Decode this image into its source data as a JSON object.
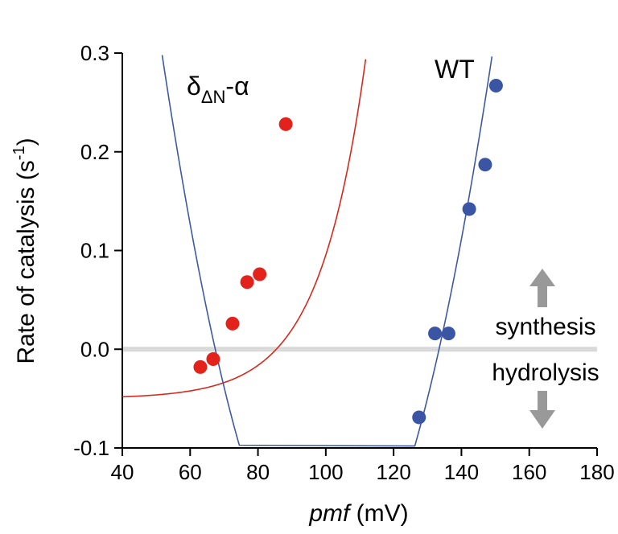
{
  "chart_data": {
    "type": "scatter",
    "xlabel": {
      "italic": "pmf",
      "rest": " (mV)"
    },
    "ylabel": {
      "main": "Rate of catalysis (s",
      "sup": "-1",
      "close": ")"
    },
    "xlim": [
      40,
      180
    ],
    "ylim": [
      -0.1,
      0.3
    ],
    "xticks": [
      "40",
      "60",
      "80",
      "100",
      "120",
      "140",
      "160",
      "180"
    ],
    "yticks": [
      "-0.1",
      "0.0",
      "0.1",
      "0.2",
      "0.3"
    ],
    "zero_line": 0.0,
    "series": [
      {
        "label_main": "δ",
        "label_sub": "ΔN",
        "label_suffix": "-α",
        "color": "#e3231b",
        "curve_color": "#d42a1e",
        "points": [
          [
            63,
            -0.018
          ],
          [
            66.8,
            -0.01
          ],
          [
            72.5,
            0.026
          ],
          [
            76.8,
            0.068
          ],
          [
            80.5,
            0.076
          ],
          [
            88.2,
            0.228
          ]
        ],
        "fit": {
          "kind": "exponential",
          "y_offset": -0.05,
          "a": 0.0018,
          "b": 0.0732
        }
      },
      {
        "label_main": "WT",
        "color": "#3a55a4",
        "curve_color": "#3e5a9e",
        "points": [
          [
            127.5,
            -0.069
          ],
          [
            132.2,
            0.016
          ],
          [
            136.2,
            0.016
          ],
          [
            142.3,
            0.142
          ],
          [
            147,
            0.187
          ],
          [
            150.2,
            0.267
          ]
        ],
        "fit": {
          "kind": "polynomial",
          "coef": [
            0.000233,
            0.015375,
            0
          ],
          "x_center": 133.4
        }
      }
    ],
    "annotations": {
      "up_label": "synthesis",
      "down_label": "hydrolysis",
      "arrow_color": "#999999"
    }
  }
}
